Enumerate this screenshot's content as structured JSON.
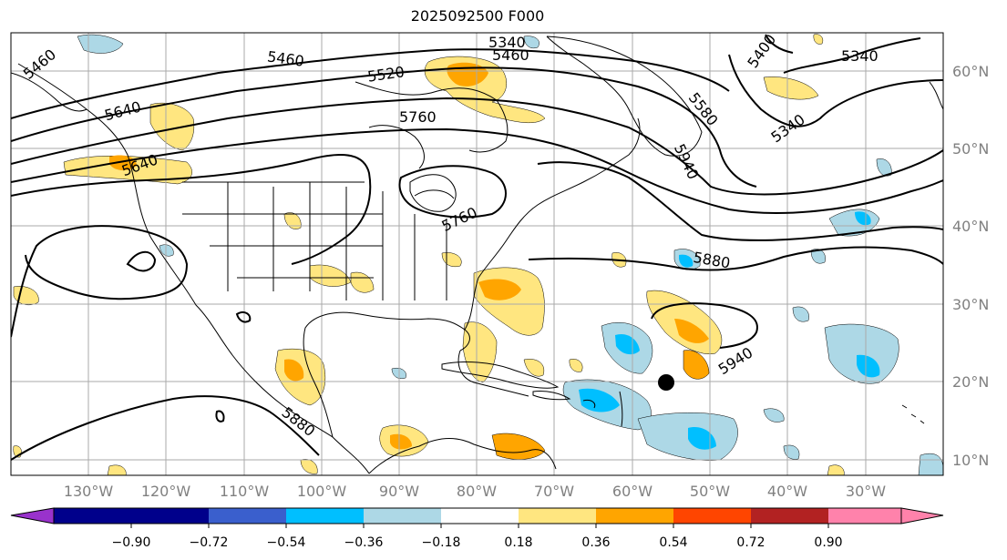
{
  "title": "2025092500 F000",
  "longitude_labels": [
    "130°W",
    "120°W",
    "110°W",
    "100°W",
    "90°W",
    "80°W",
    "70°W",
    "60°W",
    "50°W",
    "40°W",
    "30°W"
  ],
  "latitude_labels": [
    "60°N",
    "50°N",
    "40°N",
    "30°N",
    "20°N",
    "10°N"
  ],
  "contour_labels": [
    "5460",
    "5340",
    "5460",
    "5520",
    "5460",
    "5640",
    "5760",
    "5580",
    "5340",
    "5340",
    "5940",
    "5880",
    "5880",
    "5760",
    "5640",
    "5940",
    "5400"
  ],
  "colorbar": {
    "ticks": [
      "−0.90",
      "−0.72",
      "−0.54",
      "−0.36",
      "−0.18",
      "0.18",
      "0.36",
      "0.54",
      "0.72",
      "0.90"
    ],
    "colors": [
      "#9932cc",
      "#00008b",
      "#3a5fcd",
      "#00bfff",
      "#add8e6",
      "#ffffff",
      "#ffe680",
      "#ffa500",
      "#ff4500",
      "#b22222",
      "#ff82ab"
    ]
  },
  "colors": {
    "land_edge": "#000000",
    "grid": "#aaaaaa",
    "marker": "#000000"
  }
}
